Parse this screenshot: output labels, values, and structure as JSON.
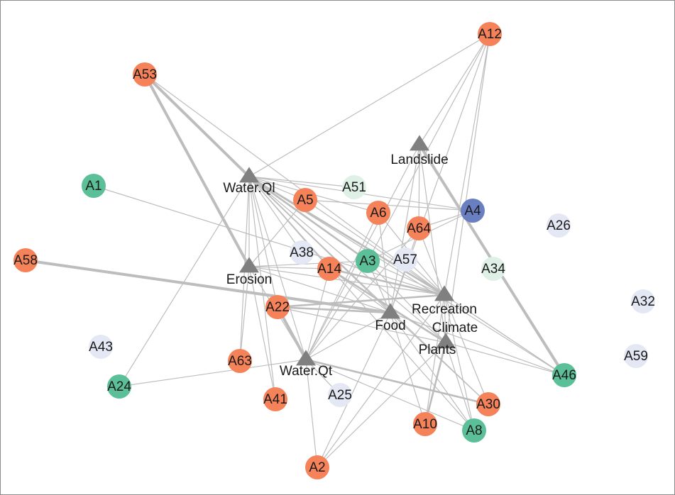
{
  "colors": {
    "orange": "#f58258",
    "green": "#5bbf98",
    "pale_green": "#dff1e6",
    "blue": "#6a7fc1",
    "pale_blue": "#e4e8f4",
    "service": "#808080",
    "edge": "#bdbdbd"
  },
  "services": [
    {
      "id": "Landslide",
      "label": "Landslide"
    },
    {
      "id": "WaterQl",
      "label": "Water.Ql"
    },
    {
      "id": "Erosion",
      "label": "Erosion"
    },
    {
      "id": "Recreation",
      "label": "Recreation"
    },
    {
      "id": "Food",
      "label": "Food"
    },
    {
      "id": "Climate",
      "label": "Climate"
    },
    {
      "id": "Plants",
      "label": "Plants"
    },
    {
      "id": "WaterQt",
      "label": "Water.Qt"
    }
  ],
  "actors": [
    {
      "id": "A12",
      "label": "A12",
      "group": "orange"
    },
    {
      "id": "A53",
      "label": "A53",
      "group": "orange"
    },
    {
      "id": "A1",
      "label": "A1",
      "group": "green"
    },
    {
      "id": "A51",
      "label": "A51",
      "group": "pale_green"
    },
    {
      "id": "A5",
      "label": "A5",
      "group": "orange"
    },
    {
      "id": "A6",
      "label": "A6",
      "group": "orange"
    },
    {
      "id": "A4",
      "label": "A4",
      "group": "blue"
    },
    {
      "id": "A64",
      "label": "A64",
      "group": "orange"
    },
    {
      "id": "A26",
      "label": "A26",
      "group": "pale_blue"
    },
    {
      "id": "A58",
      "label": "A58",
      "group": "orange"
    },
    {
      "id": "A38",
      "label": "A38",
      "group": "pale_blue"
    },
    {
      "id": "A14",
      "label": "A14",
      "group": "orange"
    },
    {
      "id": "A3",
      "label": "A3",
      "group": "green"
    },
    {
      "id": "A57",
      "label": "A57",
      "group": "pale_blue"
    },
    {
      "id": "A34",
      "label": "A34",
      "group": "pale_green"
    },
    {
      "id": "A22",
      "label": "A22",
      "group": "orange"
    },
    {
      "id": "A32",
      "label": "A32",
      "group": "pale_blue"
    },
    {
      "id": "A43",
      "label": "A43",
      "group": "pale_blue"
    },
    {
      "id": "A59",
      "label": "A59",
      "group": "pale_blue"
    },
    {
      "id": "A63",
      "label": "A63",
      "group": "orange"
    },
    {
      "id": "A24",
      "label": "A24",
      "group": "green"
    },
    {
      "id": "A46",
      "label": "A46",
      "group": "green"
    },
    {
      "id": "A25",
      "label": "A25",
      "group": "pale_blue"
    },
    {
      "id": "A41",
      "label": "A41",
      "group": "orange"
    },
    {
      "id": "A30",
      "label": "A30",
      "group": "orange"
    },
    {
      "id": "A10",
      "label": "A10",
      "group": "orange"
    },
    {
      "id": "A8",
      "label": "A8",
      "group": "green"
    },
    {
      "id": "A2",
      "label": "A2",
      "group": "orange"
    }
  ],
  "edges": [
    {
      "source": "A53",
      "target": "WaterQl",
      "weight": 3
    },
    {
      "source": "A53",
      "target": "Erosion",
      "weight": 3
    },
    {
      "source": "A53",
      "target": "Recreation",
      "weight": 1
    },
    {
      "source": "A53",
      "target": "Food",
      "weight": 1
    },
    {
      "source": "A12",
      "target": "WaterQl",
      "weight": 1
    },
    {
      "source": "A12",
      "target": "Landslide",
      "weight": 1
    },
    {
      "source": "A12",
      "target": "Recreation",
      "weight": 1
    },
    {
      "source": "A12",
      "target": "Food",
      "weight": 1
    },
    {
      "source": "A12",
      "target": "Plants",
      "weight": 1
    },
    {
      "source": "A12",
      "target": "A3",
      "weight": 1
    },
    {
      "source": "A1",
      "target": "Recreation",
      "weight": 1
    },
    {
      "source": "A58",
      "target": "Food",
      "weight": 3
    },
    {
      "source": "A4",
      "target": "WaterQl",
      "weight": 1
    },
    {
      "source": "A4",
      "target": "A64",
      "weight": 1
    },
    {
      "source": "A4",
      "target": "A3",
      "weight": 1
    },
    {
      "source": "A24",
      "target": "WaterQl",
      "weight": 1
    },
    {
      "source": "A24",
      "target": "WaterQt",
      "weight": 1
    },
    {
      "source": "A46",
      "target": "Landslide",
      "weight": 3
    },
    {
      "source": "A46",
      "target": "Recreation",
      "weight": 1
    },
    {
      "source": "A46",
      "target": "Food",
      "weight": 1
    },
    {
      "source": "A46",
      "target": "Plants",
      "weight": 1
    },
    {
      "source": "A46",
      "target": "Climate",
      "weight": 1
    },
    {
      "source": "A46",
      "target": "WaterQl",
      "weight": 1
    },
    {
      "source": "A2",
      "target": "WaterQt",
      "weight": 1
    },
    {
      "source": "A2",
      "target": "Plants",
      "weight": 1
    },
    {
      "source": "A2",
      "target": "Food",
      "weight": 1
    },
    {
      "source": "A2",
      "target": "Recreation",
      "weight": 1
    },
    {
      "source": "A10",
      "target": "Plants",
      "weight": 2
    },
    {
      "source": "A10",
      "target": "Food",
      "weight": 1
    },
    {
      "source": "A10",
      "target": "Recreation",
      "weight": 1
    },
    {
      "source": "A8",
      "target": "Plants",
      "weight": 1
    },
    {
      "source": "A8",
      "target": "WaterQl",
      "weight": 1
    },
    {
      "source": "A8",
      "target": "Recreation",
      "weight": 1
    },
    {
      "source": "A8",
      "target": "WaterQt",
      "weight": 1
    },
    {
      "source": "A8",
      "target": "Food",
      "weight": 1
    },
    {
      "source": "A30",
      "target": "WaterQt",
      "weight": 2
    },
    {
      "source": "A30",
      "target": "Food",
      "weight": 1
    },
    {
      "source": "A30",
      "target": "Recreation",
      "weight": 1
    },
    {
      "source": "A30",
      "target": "WaterQl",
      "weight": 1
    },
    {
      "source": "A41",
      "target": "WaterQl",
      "weight": 1
    },
    {
      "source": "A41",
      "target": "Erosion",
      "weight": 1
    },
    {
      "source": "A63",
      "target": "WaterQl",
      "weight": 1
    },
    {
      "source": "A63",
      "target": "Erosion",
      "weight": 1
    },
    {
      "source": "A22",
      "target": "WaterQl",
      "weight": 1
    },
    {
      "source": "A22",
      "target": "Recreation",
      "weight": 2
    },
    {
      "source": "A22",
      "target": "WaterQt",
      "weight": 3
    },
    {
      "source": "A22",
      "target": "Food",
      "weight": 2
    },
    {
      "source": "A22",
      "target": "Plants",
      "weight": 1
    },
    {
      "source": "A14",
      "target": "WaterQl",
      "weight": 1
    },
    {
      "source": "A14",
      "target": "Erosion",
      "weight": 1
    },
    {
      "source": "A14",
      "target": "Recreation",
      "weight": 2
    },
    {
      "source": "A14",
      "target": "Food",
      "weight": 1
    },
    {
      "source": "A14",
      "target": "Plants",
      "weight": 2
    },
    {
      "source": "A14",
      "target": "WaterQt",
      "weight": 1
    },
    {
      "source": "A3",
      "target": "WaterQl",
      "weight": 2
    },
    {
      "source": "A3",
      "target": "Erosion",
      "weight": 1
    },
    {
      "source": "A3",
      "target": "Recreation",
      "weight": 1
    },
    {
      "source": "A3",
      "target": "Food",
      "weight": 1
    },
    {
      "source": "A3",
      "target": "WaterQt",
      "weight": 1
    },
    {
      "source": "A3",
      "target": "Plants",
      "weight": 1
    },
    {
      "source": "A5",
      "target": "WaterQl",
      "weight": 1
    },
    {
      "source": "A5",
      "target": "Erosion",
      "weight": 1
    },
    {
      "source": "A5",
      "target": "Recreation",
      "weight": 1
    },
    {
      "source": "A5",
      "target": "A4",
      "weight": 1
    },
    {
      "source": "A6",
      "target": "Recreation",
      "weight": 1
    },
    {
      "source": "A6",
      "target": "Food",
      "weight": 1
    },
    {
      "source": "A6",
      "target": "WaterQl",
      "weight": 1
    },
    {
      "source": "A6",
      "target": "WaterQt",
      "weight": 1
    },
    {
      "source": "A64",
      "target": "Recreation",
      "weight": 1
    },
    {
      "source": "A64",
      "target": "Food",
      "weight": 1
    },
    {
      "source": "A64",
      "target": "WaterQt",
      "weight": 1
    },
    {
      "source": "A64",
      "target": "Landslide",
      "weight": 1
    },
    {
      "source": "A51",
      "target": "WaterQl",
      "weight": 1
    },
    {
      "source": "A38",
      "target": "WaterQl",
      "weight": 1
    },
    {
      "source": "A57",
      "target": "Recreation",
      "weight": 1
    },
    {
      "source": "A25",
      "target": "WaterQt",
      "weight": 1
    },
    {
      "source": "WaterQl",
      "target": "Erosion",
      "weight": 1
    },
    {
      "source": "WaterQl",
      "target": "Recreation",
      "weight": 2
    },
    {
      "source": "WaterQl",
      "target": "Food",
      "weight": 1
    },
    {
      "source": "WaterQl",
      "target": "WaterQt",
      "weight": 1
    },
    {
      "source": "WaterQl",
      "target": "Plants",
      "weight": 1
    },
    {
      "source": "Erosion",
      "target": "Recreation",
      "weight": 1
    },
    {
      "source": "Erosion",
      "target": "Food",
      "weight": 1
    },
    {
      "source": "Erosion",
      "target": "WaterQt",
      "weight": 1
    },
    {
      "source": "Landslide",
      "target": "Food",
      "weight": 1
    },
    {
      "source": "Landslide",
      "target": "Plants",
      "weight": 1
    },
    {
      "source": "Landslide",
      "target": "WaterQt",
      "weight": 1
    },
    {
      "source": "Recreation",
      "target": "Plants",
      "weight": 1
    },
    {
      "source": "Food",
      "target": "WaterQt",
      "weight": 1
    }
  ]
}
